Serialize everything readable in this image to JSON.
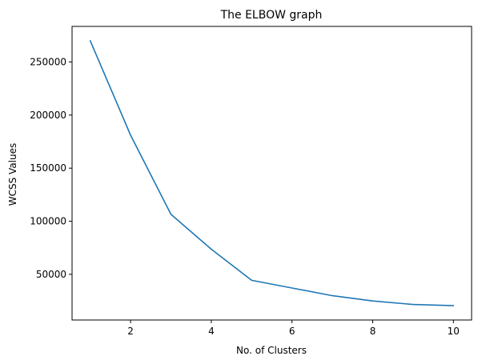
{
  "chart_data": {
    "type": "line",
    "title": "The ELBOW graph",
    "xlabel": "No. of Clusters",
    "ylabel": "WCSS Values",
    "x": [
      1,
      2,
      3,
      4,
      5,
      6,
      7,
      8,
      9,
      10
    ],
    "series": [
      {
        "values": [
          270000,
          181000,
          106500,
          73700,
          44400,
          37100,
          29900,
          24900,
          21600,
          20500
        ],
        "color": "#1f77b4"
      }
    ],
    "xlim": [
      0.55,
      10.45
    ],
    "ylim": [
      7000,
      283500
    ],
    "xticks": [
      2,
      4,
      6,
      8,
      10
    ],
    "yticks": [
      50000,
      100000,
      150000,
      200000,
      250000
    ],
    "grid": false,
    "legend": false
  }
}
